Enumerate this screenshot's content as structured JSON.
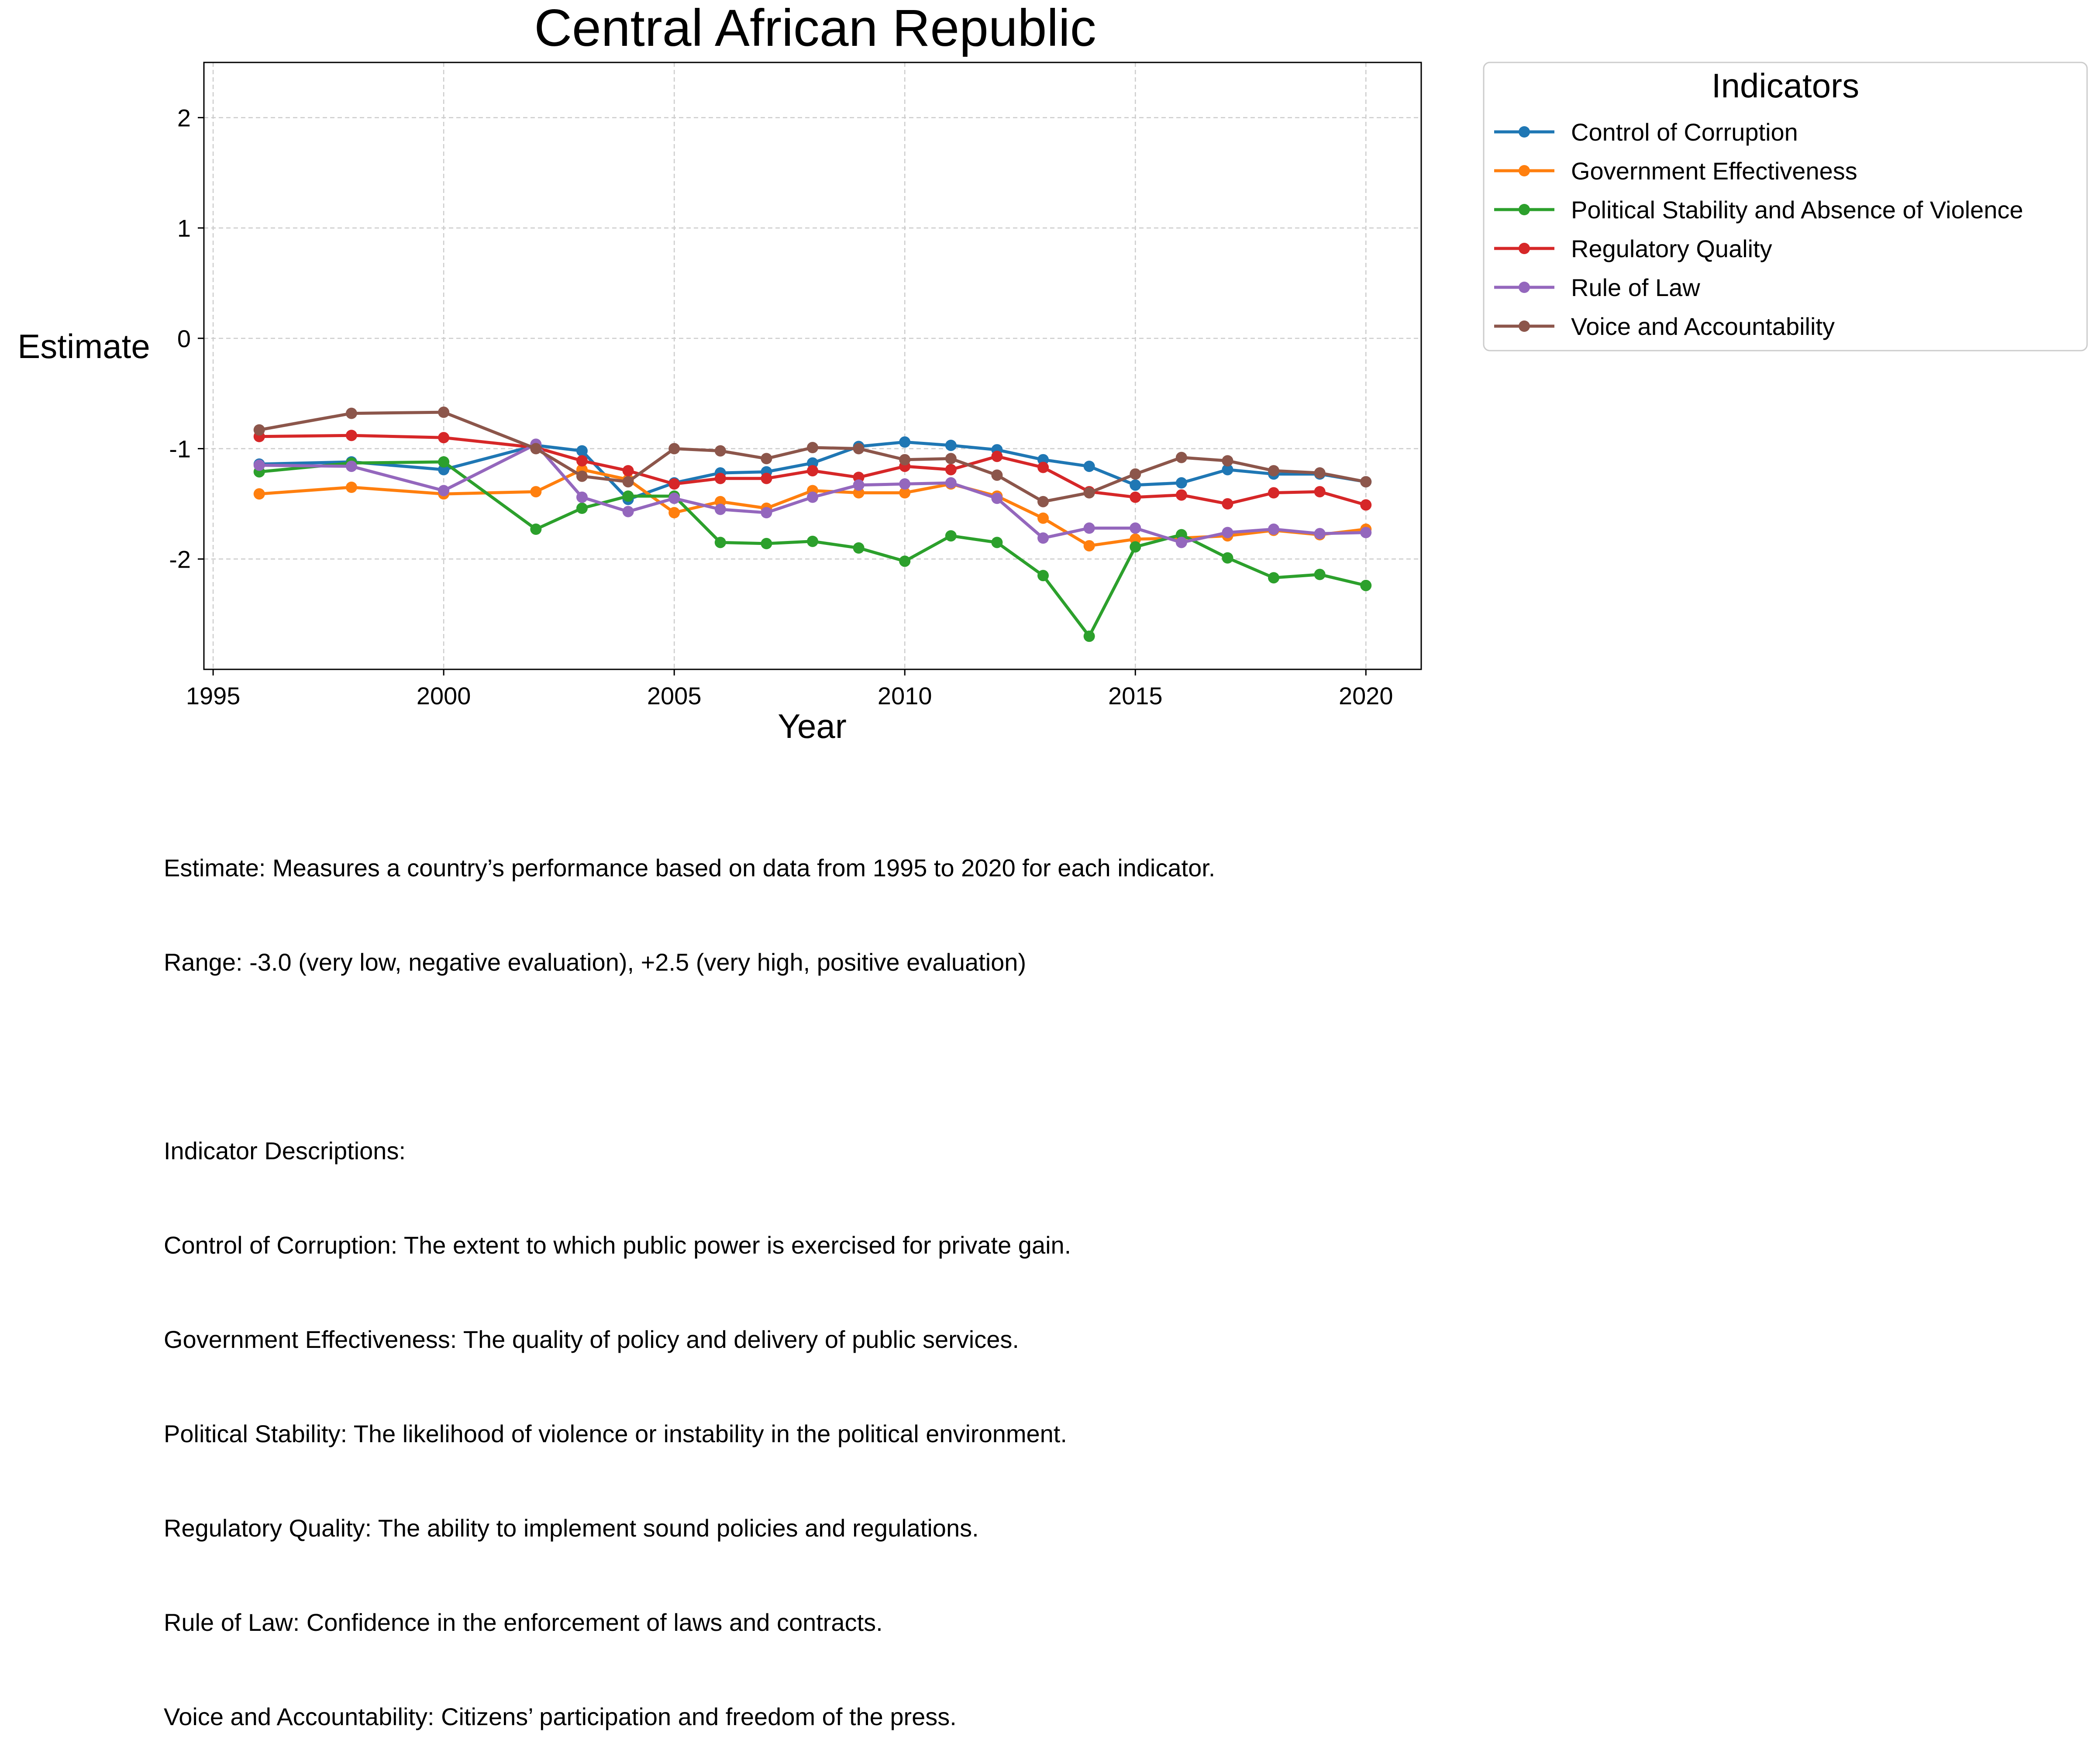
{
  "chart_data": {
    "type": "line",
    "title": "Central African Republic",
    "xlabel": "Year",
    "ylabel": "Estimate",
    "xlim": [
      1994.8,
      2021.2
    ],
    "ylim": [
      -3.0,
      2.5
    ],
    "xticks": [
      1995,
      2000,
      2005,
      2010,
      2015,
      2020
    ],
    "yticks": [
      -2,
      -1,
      0,
      1,
      2
    ],
    "grid": true,
    "legend_title": "Indicators",
    "legend_position": "outside-right",
    "x": [
      1996,
      1998,
      2000,
      2002,
      2003,
      2004,
      2005,
      2006,
      2007,
      2008,
      2009,
      2010,
      2011,
      2012,
      2013,
      2014,
      2015,
      2016,
      2017,
      2018,
      2019,
      2020
    ],
    "series": [
      {
        "name": "Control of Corruption",
        "color": "#1f77b4",
        "values": [
          -1.14,
          -1.12,
          -1.19,
          -0.97,
          -1.02,
          -1.46,
          -1.31,
          -1.22,
          -1.21,
          -1.13,
          -0.98,
          -0.94,
          -0.97,
          -1.01,
          -1.1,
          -1.16,
          -1.33,
          -1.31,
          -1.19,
          -1.23,
          -1.23,
          -1.3
        ]
      },
      {
        "name": "Government Effectiveness",
        "color": "#ff7f0e",
        "values": [
          -1.41,
          -1.35,
          -1.41,
          -1.39,
          -1.19,
          -1.28,
          -1.58,
          -1.48,
          -1.54,
          -1.38,
          -1.4,
          -1.4,
          -1.32,
          -1.43,
          -1.63,
          -1.88,
          -1.82,
          -1.81,
          -1.79,
          -1.74,
          -1.78,
          -1.73
        ]
      },
      {
        "name": "Political Stability and Absence of Violence",
        "color": "#2ca02c",
        "values": [
          -1.21,
          -1.13,
          -1.12,
          -1.73,
          -1.54,
          -1.43,
          -1.43,
          -1.85,
          -1.86,
          -1.84,
          -1.9,
          -2.02,
          -1.79,
          -1.85,
          -2.15,
          -2.7,
          -1.89,
          -1.78,
          -1.99,
          -2.17,
          -2.14,
          -2.24
        ]
      },
      {
        "name": "Regulatory Quality",
        "color": "#d62728",
        "values": [
          -0.89,
          -0.88,
          -0.9,
          -0.99,
          -1.11,
          -1.2,
          -1.32,
          -1.27,
          -1.27,
          -1.2,
          -1.26,
          -1.16,
          -1.19,
          -1.07,
          -1.17,
          -1.39,
          -1.44,
          -1.42,
          -1.5,
          -1.4,
          -1.39,
          -1.51
        ]
      },
      {
        "name": "Rule of Law",
        "color": "#9467bd",
        "values": [
          -1.15,
          -1.16,
          -1.38,
          -0.96,
          -1.44,
          -1.57,
          -1.45,
          -1.55,
          -1.58,
          -1.44,
          -1.33,
          -1.32,
          -1.31,
          -1.45,
          -1.81,
          -1.72,
          -1.72,
          -1.85,
          -1.76,
          -1.73,
          -1.77,
          -1.76
        ]
      },
      {
        "name": "Voice and Accountability",
        "color": "#8c564b",
        "values": [
          -0.83,
          -0.68,
          -0.67,
          -1.0,
          -1.25,
          -1.3,
          -1.0,
          -1.02,
          -1.09,
          -0.99,
          -1.0,
          -1.1,
          -1.09,
          -1.24,
          -1.48,
          -1.4,
          -1.23,
          -1.08,
          -1.11,
          -1.2,
          -1.22,
          -1.3
        ]
      }
    ]
  },
  "notes": {
    "estimate": "Estimate: Measures a country’s performance based on data from 1995 to 2020 for each indicator.",
    "range": "Range: -3.0 (very low, negative evaluation), +2.5 (very high, positive evaluation)",
    "heading": "Indicator Descriptions:",
    "corruption": "Control of Corruption: The extent to which public power is exercised for private gain.",
    "effectiveness": "Government Effectiveness: The quality of policy and delivery of public services.",
    "stability": "Political Stability: The likelihood of violence or instability in the political environment.",
    "regulatory": "Regulatory Quality: The ability to implement sound policies and regulations.",
    "law": "Rule of Law: Confidence in the enforcement of laws and contracts.",
    "voice": "Voice and Accountability: Citizens’ participation and freedom of the press."
  }
}
